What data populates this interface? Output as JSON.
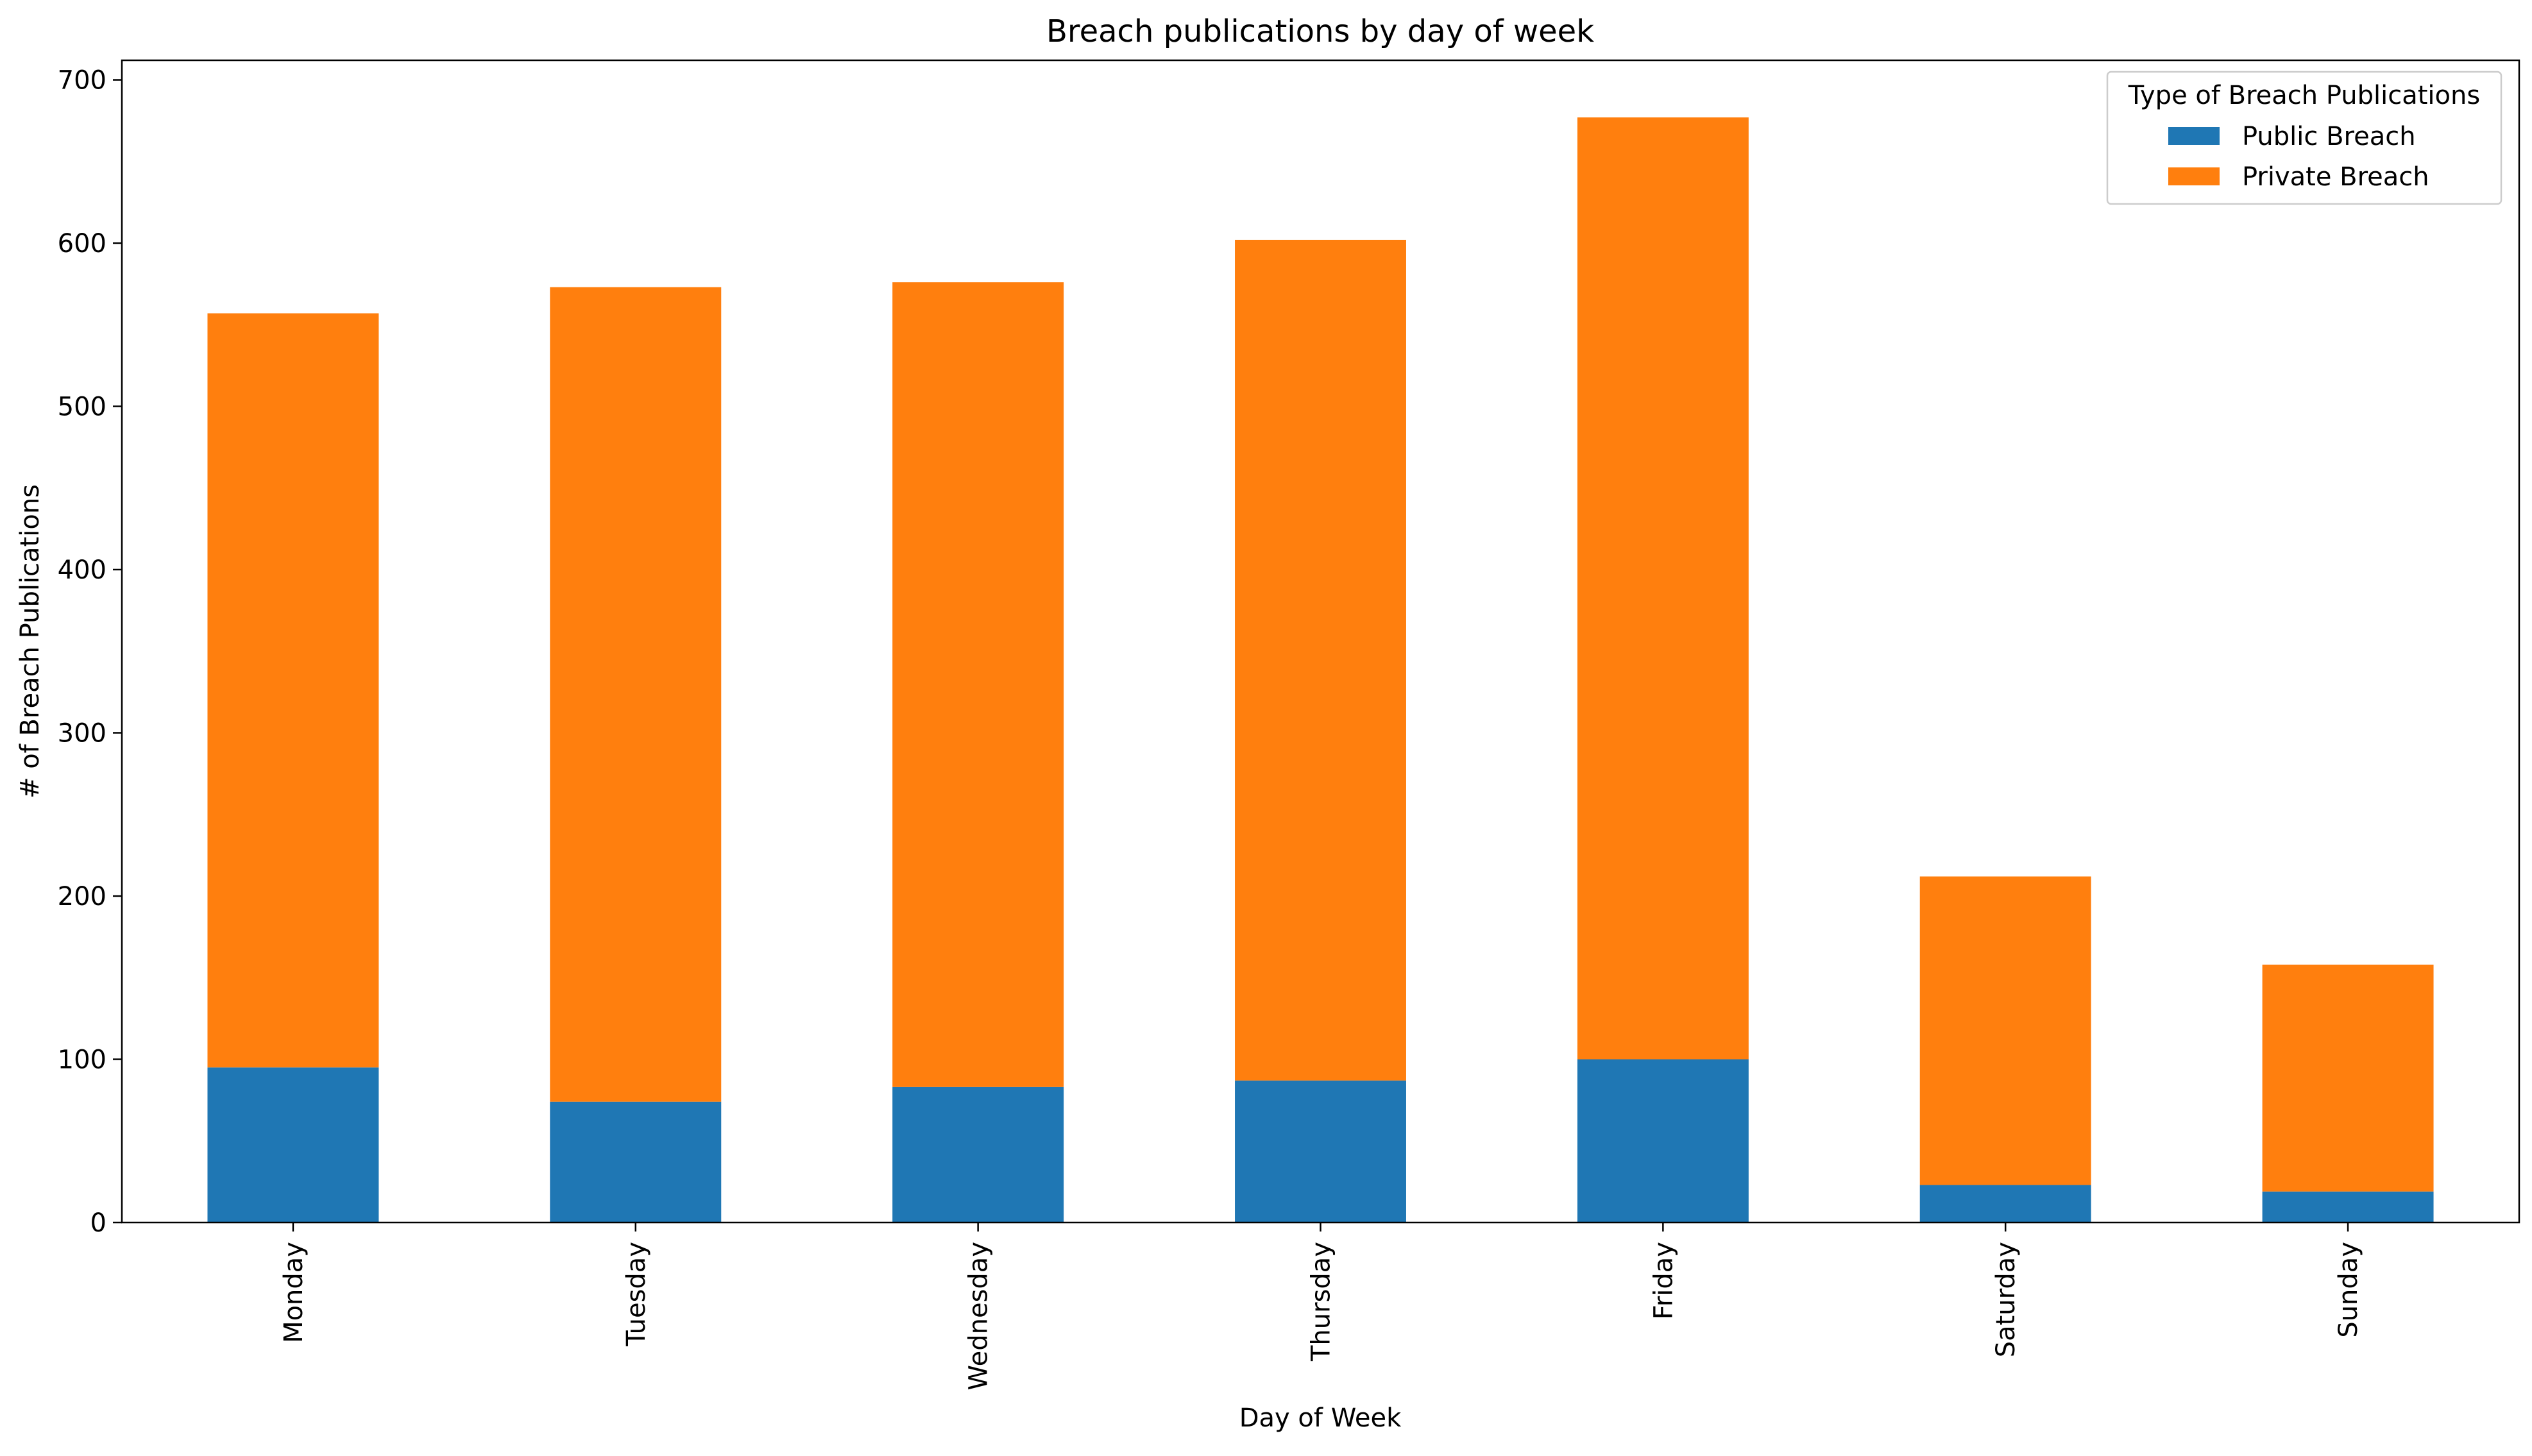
{
  "chart_data": {
    "type": "bar",
    "stacked": true,
    "title": "Breach publications by day of week",
    "xlabel": "Day of Week",
    "ylabel": "# of Breach Publications",
    "categories": [
      "Monday",
      "Tuesday",
      "Wednesday",
      "Thursday",
      "Friday",
      "Saturday",
      "Sunday"
    ],
    "series": [
      {
        "name": "Public Breach",
        "color": "#1f77b4",
        "values": [
          95,
          74,
          83,
          87,
          100,
          23,
          19
        ]
      },
      {
        "name": "Private Breach",
        "color": "#ff7f0e",
        "values": [
          462,
          499,
          493,
          515,
          577,
          189,
          139
        ]
      }
    ],
    "ylim": [
      0,
      712
    ],
    "yticks": [
      0,
      100,
      200,
      300,
      400,
      500,
      600,
      700
    ],
    "grid": false,
    "legend": {
      "title": "Type of Breach Publications",
      "position": "top-right"
    }
  }
}
